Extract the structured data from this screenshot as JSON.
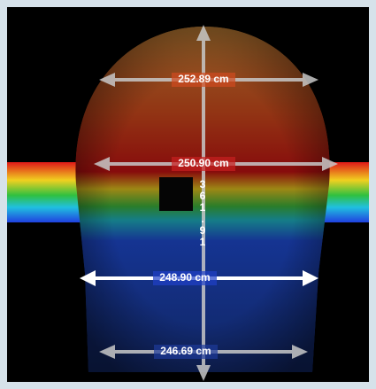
{
  "widths": [
    "252.89 cm",
    "250.90 cm",
    "248.90 cm",
    "246.69 cm"
  ],
  "height": "361.91"
}
